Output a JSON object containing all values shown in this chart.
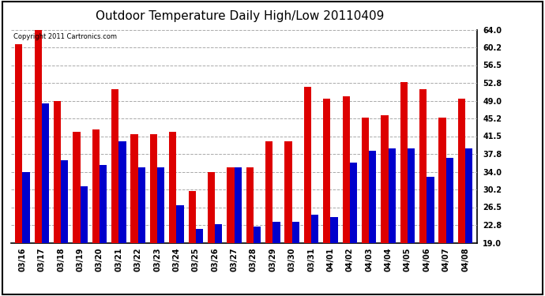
{
  "title": "Outdoor Temperature Daily High/Low 20110409",
  "copyright": "Copyright 2011 Cartronics.com",
  "dates": [
    "03/16",
    "03/17",
    "03/18",
    "03/19",
    "03/20",
    "03/21",
    "03/22",
    "03/23",
    "03/24",
    "03/25",
    "03/26",
    "03/27",
    "03/28",
    "03/29",
    "03/30",
    "03/31",
    "04/01",
    "04/02",
    "04/03",
    "04/04",
    "04/05",
    "04/06",
    "04/07",
    "04/08"
  ],
  "highs": [
    61.0,
    64.0,
    49.0,
    42.5,
    43.0,
    51.5,
    42.0,
    42.0,
    42.5,
    30.0,
    34.0,
    35.0,
    35.0,
    40.5,
    40.5,
    52.0,
    49.5,
    50.0,
    45.5,
    46.0,
    53.0,
    51.5,
    45.5,
    49.5
  ],
  "lows": [
    34.0,
    48.5,
    36.5,
    31.0,
    35.5,
    40.5,
    35.0,
    35.0,
    27.0,
    22.0,
    23.0,
    35.0,
    22.5,
    23.5,
    23.5,
    25.0,
    24.5,
    36.0,
    38.5,
    39.0,
    39.0,
    33.0,
    37.0,
    39.0
  ],
  "high_color": "#dd0000",
  "low_color": "#0000cc",
  "background_color": "#ffffff",
  "plot_bg_color": "#ffffff",
  "grid_color": "#aaaaaa",
  "ymin": 19.0,
  "ymax": 64.0,
  "yticks": [
    19.0,
    22.8,
    26.5,
    30.2,
    34.0,
    37.8,
    41.5,
    45.2,
    49.0,
    52.8,
    56.5,
    60.2,
    64.0
  ],
  "bar_width": 0.38,
  "title_fontsize": 11,
  "tick_fontsize": 7,
  "figwidth": 6.9,
  "figheight": 3.75,
  "dpi": 100
}
